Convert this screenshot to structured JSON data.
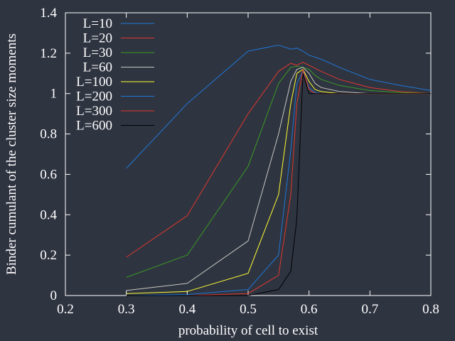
{
  "chart_data": {
    "type": "line",
    "title": "",
    "xlabel": "probability of cell to exist",
    "ylabel": "Binder cumulant of the cluster size moments",
    "xlim": [
      0.2,
      0.8
    ],
    "ylim": [
      0,
      1.4
    ],
    "xticks": [
      "0.2",
      "0.3",
      "0.4",
      "0.5",
      "0.6",
      "0.7",
      "0.8"
    ],
    "yticks": [
      "0",
      "0.2",
      "0.4",
      "0.6",
      "0.8",
      "1",
      "1.2",
      "1.4"
    ],
    "grid": false,
    "legend_position": "top-left",
    "series": [
      {
        "name": "L=10",
        "color": "#1f77d4",
        "x": [
          0.3,
          0.4,
          0.5,
          0.55,
          0.57,
          0.58,
          0.59,
          0.6,
          0.61,
          0.62,
          0.65,
          0.7,
          0.75,
          0.8
        ],
        "y": [
          0.63,
          0.95,
          1.21,
          1.24,
          1.22,
          1.225,
          1.21,
          1.19,
          1.18,
          1.17,
          1.13,
          1.07,
          1.04,
          1.015
        ]
      },
      {
        "name": "L=20",
        "color": "#e0392b",
        "x": [
          0.3,
          0.4,
          0.5,
          0.55,
          0.57,
          0.58,
          0.59,
          0.6,
          0.61,
          0.62,
          0.65,
          0.7,
          0.75,
          0.8
        ],
        "y": [
          0.19,
          0.395,
          0.9,
          1.11,
          1.15,
          1.14,
          1.155,
          1.14,
          1.125,
          1.11,
          1.07,
          1.03,
          1.01,
          1.0
        ]
      },
      {
        "name": "L=30",
        "color": "#3a9d23",
        "x": [
          0.3,
          0.4,
          0.5,
          0.55,
          0.57,
          0.58,
          0.59,
          0.6,
          0.61,
          0.62,
          0.65,
          0.7,
          0.75,
          0.8
        ],
        "y": [
          0.09,
          0.2,
          0.64,
          1.05,
          1.13,
          1.135,
          1.13,
          1.12,
          1.09,
          1.07,
          1.04,
          1.015,
          1.005,
          1.0
        ]
      },
      {
        "name": "L=60",
        "color": "#c8c8c0",
        "x": [
          0.3,
          0.4,
          0.5,
          0.55,
          0.57,
          0.58,
          0.59,
          0.6,
          0.61,
          0.62,
          0.65,
          0.7,
          0.75,
          0.8
        ],
        "y": [
          0.025,
          0.06,
          0.27,
          0.8,
          1.06,
          1.12,
          1.13,
          1.1,
          1.05,
          1.03,
          1.01,
          1.0,
          1.0,
          1.0
        ]
      },
      {
        "name": "L=100",
        "color": "#ffff33",
        "x": [
          0.3,
          0.4,
          0.5,
          0.55,
          0.57,
          0.58,
          0.59,
          0.6,
          0.61,
          0.62,
          0.65,
          0.7,
          0.75,
          0.8
        ],
        "y": [
          0.01,
          0.02,
          0.11,
          0.5,
          0.95,
          1.1,
          1.12,
          1.06,
          1.02,
          1.01,
          1.0,
          1.0,
          1.0,
          1.0
        ]
      },
      {
        "name": "L=200",
        "color": "#1f77d4",
        "x": [
          0.3,
          0.4,
          0.5,
          0.55,
          0.57,
          0.58,
          0.59,
          0.6,
          0.61,
          0.62,
          0.65,
          0.7,
          0.75,
          0.8
        ],
        "y": [
          0.0,
          0.005,
          0.03,
          0.2,
          0.72,
          1.05,
          1.11,
          1.03,
          1.005,
          1.0,
          1.0,
          1.0,
          1.0,
          1.0
        ]
      },
      {
        "name": "L=300",
        "color": "#e0392b",
        "x": [
          0.3,
          0.4,
          0.5,
          0.55,
          0.57,
          0.58,
          0.59,
          0.6,
          0.61,
          0.62,
          0.65,
          0.7,
          0.75,
          0.8
        ],
        "y": [
          0.0,
          0.0,
          0.01,
          0.1,
          0.5,
          0.95,
          1.12,
          1.02,
          1.0,
          1.0,
          1.0,
          1.0,
          1.0,
          1.0
        ]
      },
      {
        "name": "L=600",
        "color": "#000000",
        "x": [
          0.3,
          0.4,
          0.5,
          0.55,
          0.57,
          0.58,
          0.59,
          0.6,
          0.61,
          0.62,
          0.65,
          0.7,
          0.75,
          0.8
        ],
        "y": [
          0.0,
          0.0,
          0.0,
          0.03,
          0.12,
          0.38,
          1.1,
          1.0,
          1.0,
          1.0,
          1.0,
          1.0,
          1.0,
          1.0
        ]
      }
    ]
  }
}
